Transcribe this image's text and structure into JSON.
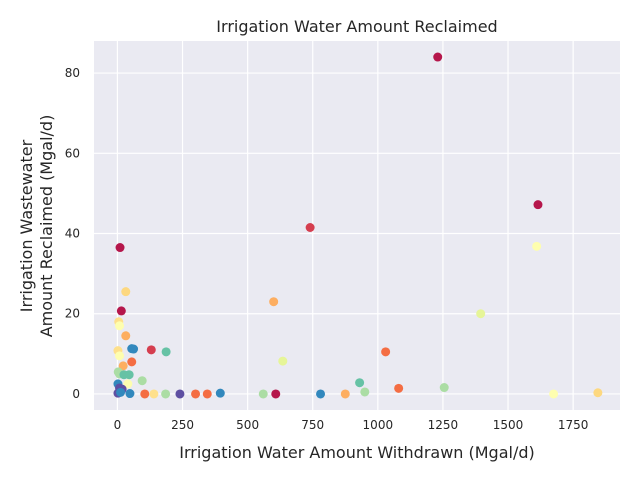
{
  "chart_data": {
    "type": "scatter",
    "title": "Irrigation Water Amount Reclaimed",
    "xlabel": "Irrigation Water Amount Withdrawn (Mgal/d)",
    "ylabel_lines": [
      "Irrigation Wastewater",
      "Amount Reclaimed (Mgal/d)"
    ],
    "xlim": [
      -90,
      1930
    ],
    "ylim": [
      -4,
      88
    ],
    "xticks": [
      0,
      250,
      500,
      750,
      1000,
      1250,
      1500,
      1750
    ],
    "yticks": [
      0,
      20,
      40,
      60,
      80
    ],
    "grid": true,
    "background": "#eaeaf2",
    "points": [
      {
        "x": 1230,
        "y": 84,
        "color": "#b5164b"
      },
      {
        "x": 1615,
        "y": 47.2,
        "color": "#b5164b"
      },
      {
        "x": 740,
        "y": 41.5,
        "color": "#d53e4f"
      },
      {
        "x": 10,
        "y": 36.5,
        "color": "#b5164b"
      },
      {
        "x": 1610,
        "y": 36.8,
        "color": "#fefeaf"
      },
      {
        "x": 32,
        "y": 25.5,
        "color": "#fdd880"
      },
      {
        "x": 600,
        "y": 23,
        "color": "#fdae61"
      },
      {
        "x": 15,
        "y": 20.7,
        "color": "#b5164b"
      },
      {
        "x": 1395,
        "y": 20,
        "color": "#e6f598"
      },
      {
        "x": 5,
        "y": 18,
        "color": "#fee08b"
      },
      {
        "x": 8,
        "y": 17,
        "color": "#fefeaf"
      },
      {
        "x": 32,
        "y": 14.5,
        "color": "#fdae61"
      },
      {
        "x": 55,
        "y": 11.3,
        "color": "#3288bd"
      },
      {
        "x": 62,
        "y": 11.2,
        "color": "#3288bd"
      },
      {
        "x": 130,
        "y": 11,
        "color": "#d53e4f"
      },
      {
        "x": 187,
        "y": 10.5,
        "color": "#66c2a5"
      },
      {
        "x": 1030,
        "y": 10.5,
        "color": "#f46d43"
      },
      {
        "x": 2,
        "y": 10.8,
        "color": "#fee08b"
      },
      {
        "x": 8,
        "y": 9.5,
        "color": "#fefeaf"
      },
      {
        "x": 635,
        "y": 8.2,
        "color": "#e6f598"
      },
      {
        "x": 55,
        "y": 8,
        "color": "#f46d43"
      },
      {
        "x": 22,
        "y": 7,
        "color": "#fdae61"
      },
      {
        "x": 3,
        "y": 5.5,
        "color": "#abdda4"
      },
      {
        "x": 8,
        "y": 5,
        "color": "#abdda4"
      },
      {
        "x": 25,
        "y": 4.8,
        "color": "#66c2a5"
      },
      {
        "x": 45,
        "y": 4.8,
        "color": "#66c2a5"
      },
      {
        "x": 95,
        "y": 3.3,
        "color": "#abdda4"
      },
      {
        "x": 930,
        "y": 2.8,
        "color": "#66c2a5"
      },
      {
        "x": 40,
        "y": 2.5,
        "color": "#fefeaf"
      },
      {
        "x": 2,
        "y": 2.5,
        "color": "#3288bd"
      },
      {
        "x": 1255,
        "y": 1.6,
        "color": "#abdda4"
      },
      {
        "x": 1080,
        "y": 1.4,
        "color": "#f46d43"
      },
      {
        "x": 8,
        "y": 1.5,
        "color": "#5e4fa2"
      },
      {
        "x": 18,
        "y": 1.2,
        "color": "#5e4fa2"
      },
      {
        "x": 2,
        "y": 0.2,
        "color": "#5e4fa2"
      },
      {
        "x": 12,
        "y": 0.4,
        "color": "#3288bd"
      },
      {
        "x": 48,
        "y": 0.1,
        "color": "#3288bd"
      },
      {
        "x": 105,
        "y": 0,
        "color": "#f46d43"
      },
      {
        "x": 140,
        "y": 0,
        "color": "#fee08b"
      },
      {
        "x": 185,
        "y": 0,
        "color": "#abdda4"
      },
      {
        "x": 240,
        "y": 0,
        "color": "#5e4fa2"
      },
      {
        "x": 300,
        "y": 0,
        "color": "#f46d43"
      },
      {
        "x": 345,
        "y": 0,
        "color": "#f46d43"
      },
      {
        "x": 395,
        "y": 0.2,
        "color": "#3288bd"
      },
      {
        "x": 560,
        "y": 0,
        "color": "#abdda4"
      },
      {
        "x": 608,
        "y": 0,
        "color": "#b5164b"
      },
      {
        "x": 780,
        "y": 0,
        "color": "#3288bd"
      },
      {
        "x": 875,
        "y": 0,
        "color": "#fdae61"
      },
      {
        "x": 950,
        "y": 0.5,
        "color": "#abdda4"
      },
      {
        "x": 1675,
        "y": 0,
        "color": "#fefeaf"
      },
      {
        "x": 1845,
        "y": 0.3,
        "color": "#fdd880"
      }
    ]
  }
}
